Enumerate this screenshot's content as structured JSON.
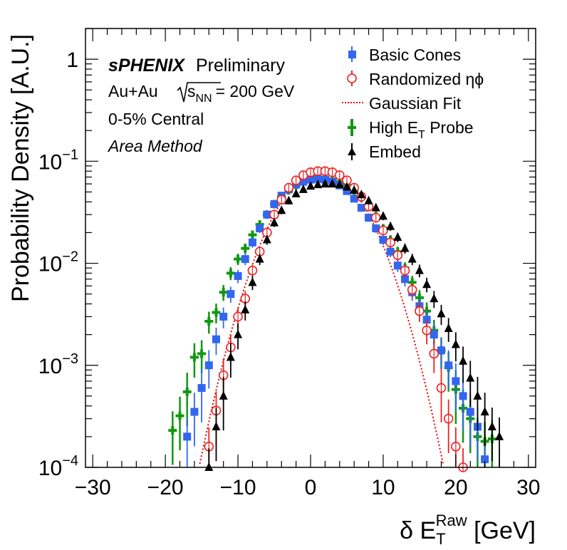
{
  "chart_data": {
    "type": "scatter",
    "y_scale": "log",
    "xlim": [
      -31,
      31
    ],
    "ylim": [
      0.0001,
      2
    ],
    "xticks": [
      "−30",
      "−20",
      "−10",
      "0",
      "10",
      "20",
      "30"
    ],
    "yticks": [
      {
        "base": "1",
        "exp": ""
      },
      {
        "base": "10",
        "exp": "−1"
      },
      {
        "base": "10",
        "exp": "−2"
      },
      {
        "base": "10",
        "exp": "−3"
      },
      {
        "base": "10",
        "exp": "−4"
      }
    ],
    "ylabel": "Probability Density [A.U.]",
    "xlabel": {
      "prefix": "δ E",
      "sub": "T",
      "sup": "Raw",
      "suffix": " [GeV]"
    },
    "annotations": {
      "experiment": "sPHENIX",
      "status": "Preliminary",
      "system": "Au+Au",
      "sqrt_label": "s",
      "sqrt_sub": "NN",
      "energy": "= 200 GeV",
      "centrality": "0-5% Central",
      "method": "Area Method"
    },
    "legend_position": "top-right",
    "series": [
      {
        "name": "Basic Cones",
        "marker": "square",
        "color": "#3366ee",
        "x": [
          -17,
          -16,
          -15,
          -14,
          -13,
          -12,
          -11,
          -10,
          -9,
          -8,
          -7,
          -6,
          -5,
          -4,
          -3,
          -2,
          -1,
          0,
          1,
          2,
          3,
          4,
          5,
          6,
          7,
          8,
          9,
          10,
          11,
          12,
          13,
          14,
          15,
          16,
          17,
          18,
          19,
          20,
          21,
          22,
          23,
          24
        ],
        "y": [
          0.0002,
          0.00035,
          0.0006,
          0.001,
          0.0018,
          0.003,
          0.005,
          0.0075,
          0.011,
          0.016,
          0.022,
          0.03,
          0.038,
          0.046,
          0.053,
          0.059,
          0.063,
          0.066,
          0.067,
          0.066,
          0.063,
          0.058,
          0.051,
          0.043,
          0.035,
          0.028,
          0.022,
          0.017,
          0.013,
          0.0095,
          0.007,
          0.0052,
          0.0038,
          0.0028,
          0.002,
          0.0014,
          0.001,
          0.0007,
          0.0005,
          0.00035,
          0.00025,
          0.00012
        ]
      },
      {
        "name": "Randomized ηϕ",
        "marker": "circle",
        "color": "#ee2222",
        "x": [
          -14,
          -13,
          -12,
          -11,
          -10,
          -9,
          -8,
          -7,
          -6,
          -5,
          -4,
          -3,
          -2,
          -1,
          0,
          1,
          2,
          3,
          4,
          5,
          6,
          7,
          8,
          9,
          10,
          11,
          12,
          13,
          14,
          15,
          16,
          17,
          18,
          19,
          20,
          21
        ],
        "y": [
          0.00016,
          0.00036,
          0.0008,
          0.0015,
          0.003,
          0.0045,
          0.0085,
          0.013,
          0.02,
          0.03,
          0.042,
          0.055,
          0.065,
          0.073,
          0.078,
          0.08,
          0.08,
          0.078,
          0.073,
          0.065,
          0.055,
          0.045,
          0.036,
          0.028,
          0.021,
          0.016,
          0.012,
          0.0085,
          0.0055,
          0.0034,
          0.0022,
          0.0013,
          0.0006,
          0.0003,
          0.00016,
          0.0001
        ]
      },
      {
        "name": "High E_T Probe",
        "marker": "plus",
        "color": "#119911",
        "x": [
          -19,
          -18,
          -17,
          -16,
          -15,
          -14,
          -13,
          -12,
          -11,
          -10,
          -9,
          -8,
          -7,
          -6,
          -5,
          -4,
          -3,
          -2,
          -1,
          0,
          1,
          2,
          3,
          4,
          5,
          6,
          7,
          8,
          9,
          10,
          11,
          12,
          13,
          14,
          15,
          16,
          17,
          18,
          19,
          20,
          21,
          22,
          23,
          24,
          25
        ],
        "y": [
          0.00023,
          0.00032,
          0.00055,
          0.0012,
          0.0013,
          0.0027,
          0.0033,
          0.0052,
          0.008,
          0.011,
          0.014,
          0.019,
          0.024,
          0.03,
          0.038,
          0.045,
          0.052,
          0.058,
          0.064,
          0.067,
          0.069,
          0.069,
          0.067,
          0.063,
          0.058,
          0.051,
          0.044,
          0.036,
          0.029,
          0.022,
          0.017,
          0.013,
          0.009,
          0.0065,
          0.0046,
          0.0034,
          0.0022,
          0.0014,
          0.00095,
          0.00058,
          0.00038,
          0.0003,
          0.0002,
          0.00018,
          0.00019
        ]
      },
      {
        "name": "Embed",
        "marker": "triangle",
        "color": "#000000",
        "x": [
          -14,
          -13,
          -12,
          -11,
          -10,
          -9,
          -8,
          -7,
          -6,
          -5,
          -4,
          -3,
          -2,
          -1,
          0,
          1,
          2,
          3,
          4,
          5,
          6,
          7,
          8,
          9,
          10,
          11,
          12,
          13,
          14,
          15,
          16,
          17,
          18,
          19,
          20,
          21,
          22,
          23,
          24,
          25,
          26
        ],
        "y": [
          0.0001,
          0.00025,
          0.0005,
          0.0012,
          0.002,
          0.0035,
          0.0065,
          0.011,
          0.017,
          0.025,
          0.033,
          0.041,
          0.048,
          0.053,
          0.057,
          0.059,
          0.06,
          0.06,
          0.059,
          0.056,
          0.052,
          0.047,
          0.041,
          0.035,
          0.029,
          0.023,
          0.018,
          0.014,
          0.011,
          0.0085,
          0.0062,
          0.0045,
          0.0032,
          0.0023,
          0.0016,
          0.0011,
          0.00075,
          0.0005,
          0.00035,
          0.00025,
          0.0002
        ]
      },
      {
        "name": "Gaussian Fit",
        "marker": "dotted-line",
        "color": "#ee0000",
        "fit": {
          "mean": 1.5,
          "sigma": 4.6,
          "amplitude": 0.082
        }
      }
    ]
  }
}
